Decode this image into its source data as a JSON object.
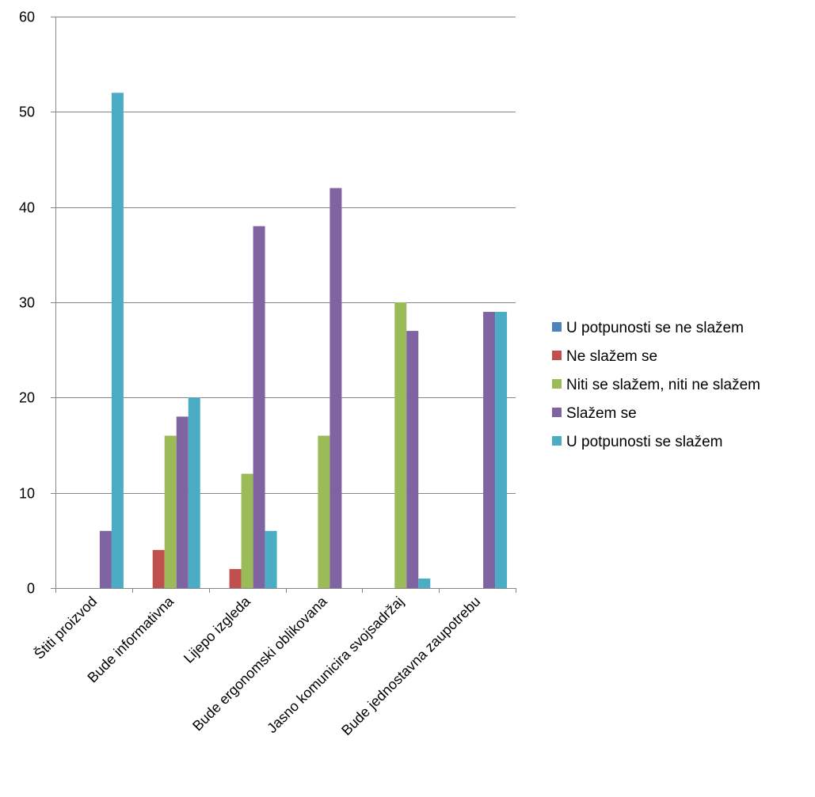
{
  "chart_data": {
    "type": "bar",
    "categories": [
      "Štiti proizvod",
      "Bude informativna",
      "Lijepo izgleda",
      "Bude ergonomski oblikovana",
      "Jasno komunicira svojsadržaj",
      "Bude jednostavna zaupotrebu"
    ],
    "series": [
      {
        "name": "U potpunosti se ne slažem",
        "color": "#4F81BD",
        "values": [
          0,
          0,
          0,
          0,
          0,
          0
        ]
      },
      {
        "name": "Ne slažem se",
        "color": "#C0504D",
        "values": [
          0,
          4,
          2,
          0,
          0,
          0
        ]
      },
      {
        "name": "Niti se slažem, niti ne slažem",
        "color": "#9BBB59",
        "values": [
          0,
          16,
          12,
          16,
          30,
          0
        ]
      },
      {
        "name": "Slažem se",
        "color": "#8064A2",
        "values": [
          6,
          18,
          38,
          42,
          27,
          29
        ]
      },
      {
        "name": "U potpunosti se slažem",
        "color": "#4BACC6",
        "values": [
          52,
          20,
          6,
          0,
          1,
          29
        ]
      }
    ],
    "ylim": [
      0,
      60
    ],
    "yticks": [
      "0",
      "10",
      "20",
      "30",
      "40",
      "50",
      "60"
    ],
    "grid": true,
    "legend_position": "right",
    "title": "",
    "xlabel": "",
    "ylabel": ""
  }
}
